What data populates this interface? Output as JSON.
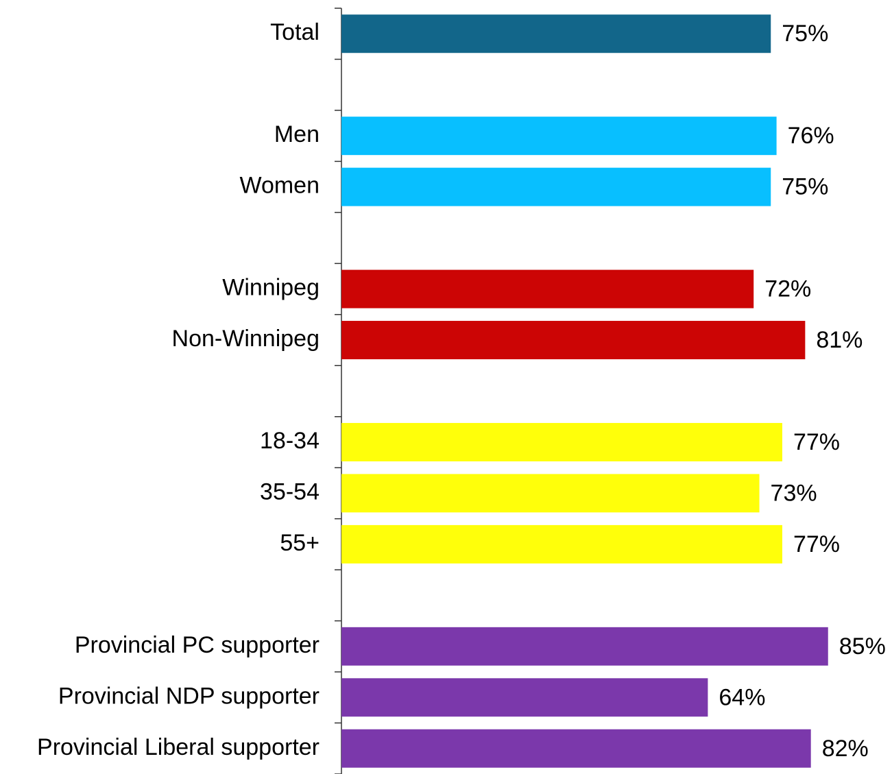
{
  "chart_data": {
    "type": "hbar",
    "categories": [
      "Total",
      null,
      "Men",
      "Women",
      null,
      "Winnipeg",
      "Non-Winnipeg",
      null,
      "18-34",
      "35-54",
      "55+",
      null,
      "Provincial PC supporter",
      "Provincial NDP supporter",
      "Provincial Liberal supporter"
    ],
    "values": [
      75,
      null,
      76,
      75,
      null,
      72,
      81,
      null,
      77,
      73,
      77,
      null,
      85,
      64,
      82
    ],
    "value_labels": [
      "75%",
      null,
      "76%",
      "75%",
      null,
      "72%",
      "81%",
      null,
      "77%",
      "73%",
      "77%",
      null,
      "85%",
      "64%",
      "82%"
    ],
    "colors": [
      "#12668a",
      null,
      "#08bfff",
      "#08bfff",
      null,
      "#cc0505",
      "#cc0505",
      null,
      "#ffff0a",
      "#ffff0a",
      "#ffff0a",
      null,
      "#7b38ab",
      "#7b38ab",
      "#7b38ab"
    ],
    "xlim": [
      0,
      100
    ]
  }
}
